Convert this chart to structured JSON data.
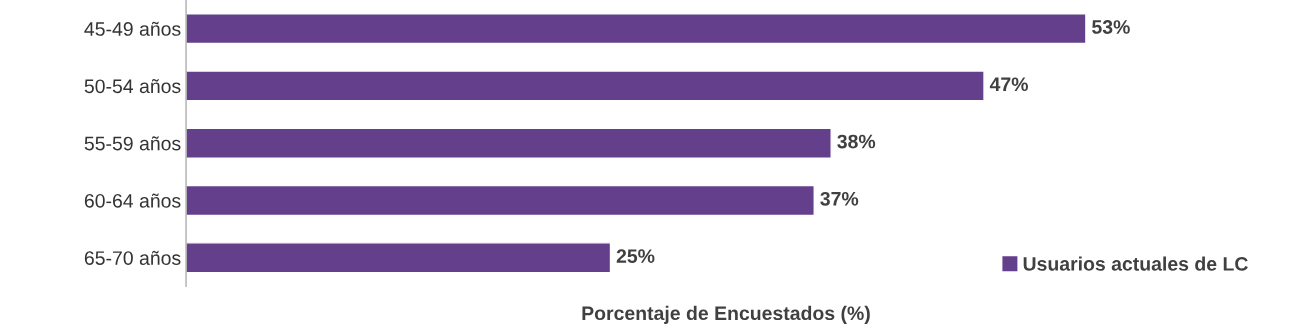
{
  "chart_data": {
    "type": "bar",
    "orientation": "horizontal",
    "xlabel": "Porcentaje de Encuestados (%)",
    "categories": [
      "45-49 años",
      "50-54 años",
      "55-59 años",
      "60-64 años",
      "65-70 años"
    ],
    "series": [
      {
        "name": "Usuarios actuales de LC",
        "color": "#643f8c",
        "values": [
          53,
          47,
          38,
          37,
          25
        ],
        "value_labels": [
          "53%",
          "47%",
          "38%",
          "37%",
          "25%"
        ]
      }
    ],
    "tick_labels": "y",
    "legend": "bottom right",
    "grid": false
  }
}
